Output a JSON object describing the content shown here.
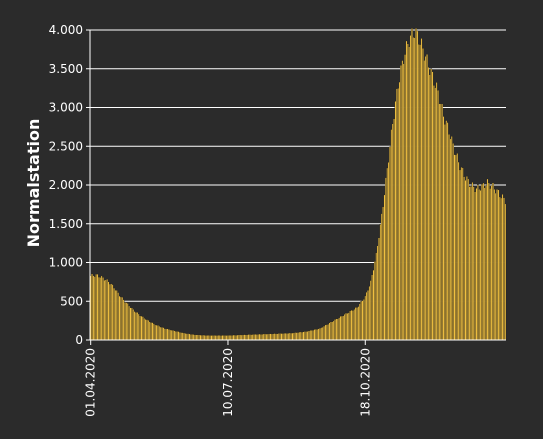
{
  "colors": {
    "background": "#2b2b2b",
    "bar": "#f0c040",
    "bar_edge": "#1a1a1a",
    "grid": "#ffffff",
    "text": "#ffffff"
  },
  "chart_data": {
    "type": "bar",
    "ylabel": "Normalstation",
    "xlabel": "",
    "title": "",
    "ylim": [
      0,
      4000
    ],
    "grid": "horizontal",
    "yticks": [
      {
        "value": 0,
        "label": "0"
      },
      {
        "value": 500,
        "label": "500"
      },
      {
        "value": 1000,
        "label": "1.000"
      },
      {
        "value": 1500,
        "label": "1.500"
      },
      {
        "value": 2000,
        "label": "2.000"
      },
      {
        "value": 2500,
        "label": "2.500"
      },
      {
        "value": 3000,
        "label": "3.000"
      },
      {
        "value": 3500,
        "label": "3.500"
      },
      {
        "value": 4000,
        "label": "4.000"
      }
    ],
    "x_start": "2020-04-01",
    "x_end": "2021-01-28",
    "xticks": [
      {
        "date": "2020-04-01",
        "label": "01.04.2020"
      },
      {
        "date": "2020-07-10",
        "label": "10.07.2020"
      },
      {
        "date": "2020-10-18",
        "label": "18.10.2020"
      }
    ],
    "series": [
      {
        "points": [
          [
            "2020-04-01",
            830
          ],
          [
            "2020-04-05",
            840
          ],
          [
            "2020-04-08",
            820
          ],
          [
            "2020-04-12",
            780
          ],
          [
            "2020-04-15",
            740
          ],
          [
            "2020-04-18",
            680
          ],
          [
            "2020-04-22",
            580
          ],
          [
            "2020-04-27",
            480
          ],
          [
            "2020-05-02",
            390
          ],
          [
            "2020-05-07",
            320
          ],
          [
            "2020-05-12",
            260
          ],
          [
            "2020-05-18",
            200
          ],
          [
            "2020-05-25",
            150
          ],
          [
            "2020-06-01",
            120
          ],
          [
            "2020-06-08",
            90
          ],
          [
            "2020-06-15",
            70
          ],
          [
            "2020-06-25",
            60
          ],
          [
            "2020-07-10",
            60
          ],
          [
            "2020-07-25",
            70
          ],
          [
            "2020-08-10",
            80
          ],
          [
            "2020-08-25",
            90
          ],
          [
            "2020-09-05",
            110
          ],
          [
            "2020-09-15",
            150
          ],
          [
            "2020-09-22",
            220
          ],
          [
            "2020-09-30",
            300
          ],
          [
            "2020-10-07",
            370
          ],
          [
            "2020-10-12",
            420
          ],
          [
            "2020-10-18",
            560
          ],
          [
            "2020-10-22",
            750
          ],
          [
            "2020-10-26",
            1100
          ],
          [
            "2020-10-30",
            1600
          ],
          [
            "2020-11-03",
            2200
          ],
          [
            "2020-11-07",
            2800
          ],
          [
            "2020-11-11",
            3300
          ],
          [
            "2020-11-15",
            3650
          ],
          [
            "2020-11-19",
            3880
          ],
          [
            "2020-11-23",
            3980
          ],
          [
            "2020-11-26",
            3900
          ],
          [
            "2020-11-29",
            3750
          ],
          [
            "2020-12-02",
            3600
          ],
          [
            "2020-12-06",
            3400
          ],
          [
            "2020-12-10",
            3200
          ],
          [
            "2020-12-14",
            2900
          ],
          [
            "2020-12-18",
            2700
          ],
          [
            "2020-12-22",
            2450
          ],
          [
            "2020-12-26",
            2250
          ],
          [
            "2020-12-30",
            2100
          ],
          [
            "2021-01-03",
            2000
          ],
          [
            "2021-01-07",
            1950
          ],
          [
            "2021-01-11",
            1980
          ],
          [
            "2021-01-15",
            2030
          ],
          [
            "2021-01-19",
            1980
          ],
          [
            "2021-01-23",
            1900
          ],
          [
            "2021-01-28",
            1800
          ]
        ]
      }
    ]
  }
}
